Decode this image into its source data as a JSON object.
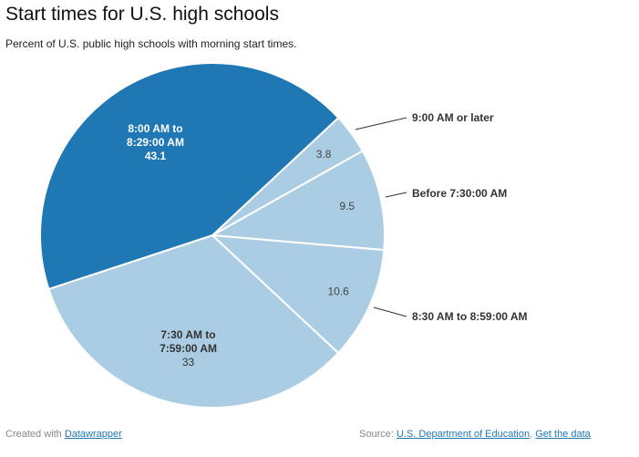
{
  "title": "Start times for U.S. high schools",
  "subtitle": "Percent of U.S. public high schools with morning start times.",
  "chart_data": {
    "type": "pie",
    "start_angle_deg": 47,
    "slices": [
      {
        "label": "9:00 AM or later",
        "value": 3.8,
        "color": "#abcde4",
        "label_position": "outside"
      },
      {
        "label": "Before 7:30:00 AM",
        "value": 9.5,
        "color": "#abcde4",
        "label_position": "outside"
      },
      {
        "label": "8:30 AM to 8:59:00 AM",
        "value": 10.6,
        "color": "#abcde4",
        "label_position": "outside"
      },
      {
        "label_lines": [
          "7:30 AM to",
          "7:59:00 AM"
        ],
        "value": 33,
        "color": "#abcde4",
        "label_position": "inside"
      },
      {
        "label_lines": [
          "8:00 AM to",
          "8:29:00 AM"
        ],
        "value": 43.1,
        "color": "#1f77b4",
        "label_position": "inside"
      }
    ]
  },
  "footer": {
    "created_prefix": "Created with ",
    "created_link": "Datawrapper",
    "source_prefix": "Source: ",
    "source_link": "U.S. Department of Education",
    "separator": ", ",
    "data_link": "Get the data"
  }
}
